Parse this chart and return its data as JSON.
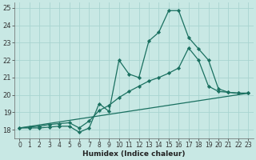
{
  "xlabel": "Humidex (Indice chaleur)",
  "xlim": [
    -0.5,
    23.5
  ],
  "ylim": [
    17.5,
    25.3
  ],
  "yticks": [
    18,
    19,
    20,
    21,
    22,
    23,
    24,
    25
  ],
  "xticks": [
    0,
    1,
    2,
    3,
    4,
    5,
    6,
    7,
    8,
    9,
    10,
    11,
    12,
    13,
    14,
    15,
    16,
    17,
    18,
    19,
    20,
    21,
    22,
    23
  ],
  "bg_color": "#c8e8e4",
  "grid_color": "#a8d4d0",
  "line_color": "#1a7060",
  "line1_x": [
    0,
    1,
    2,
    3,
    4,
    5,
    6,
    7,
    8,
    9,
    10,
    11,
    12,
    13,
    14,
    15,
    16,
    17,
    18,
    19,
    20,
    21,
    22,
    23
  ],
  "line1_y": [
    18.1,
    18.1,
    18.1,
    18.15,
    18.2,
    18.2,
    17.85,
    18.1,
    19.5,
    19.05,
    22.0,
    21.2,
    21.0,
    23.1,
    23.6,
    24.85,
    24.85,
    23.3,
    22.65,
    22.0,
    20.35,
    20.15,
    20.1,
    20.1
  ],
  "line2_x": [
    0,
    1,
    2,
    3,
    4,
    5,
    6,
    7,
    8,
    9,
    10,
    11,
    12,
    13,
    14,
    15,
    16,
    17,
    18,
    19,
    20,
    21,
    22,
    23
  ],
  "line2_y": [
    18.1,
    18.15,
    18.2,
    18.3,
    18.35,
    18.4,
    18.1,
    18.5,
    19.1,
    19.4,
    19.85,
    20.2,
    20.5,
    20.8,
    21.0,
    21.25,
    21.55,
    22.7,
    22.0,
    20.5,
    20.2,
    20.15,
    20.1,
    20.1
  ],
  "line3_x": [
    0,
    23
  ],
  "line3_y": [
    18.1,
    20.1
  ]
}
